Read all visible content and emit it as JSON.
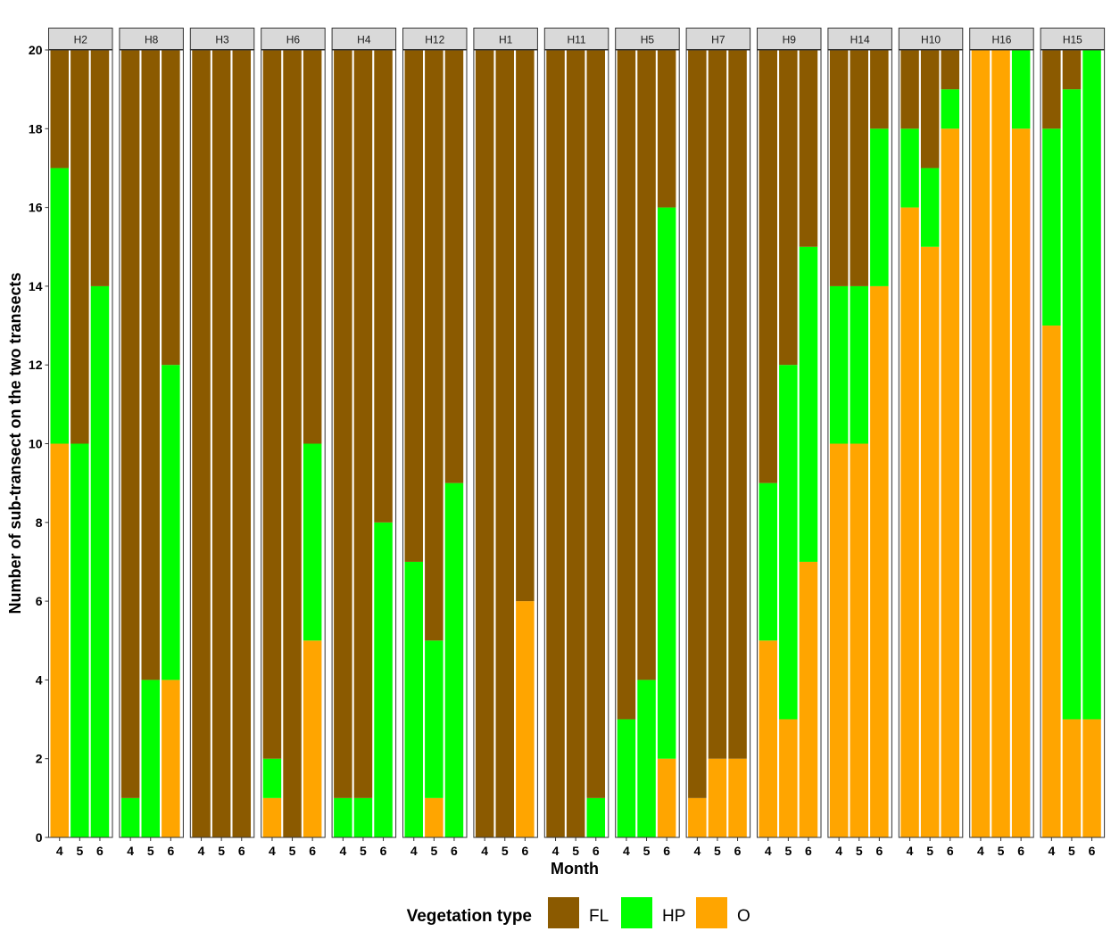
{
  "chart_data": {
    "type": "bar",
    "stacked": true,
    "xlabel": "Month",
    "ylabel": "Number of sub-transect on the two transects",
    "ylim": [
      0,
      20
    ],
    "yticks": [
      0,
      2,
      4,
      6,
      8,
      10,
      12,
      14,
      16,
      18,
      20
    ],
    "categories": [
      "4",
      "5",
      "6"
    ],
    "legend": {
      "title": "Vegetation type",
      "position": "bottom",
      "items": [
        {
          "key": "FL",
          "label": "FL",
          "color": "#8B5A00"
        },
        {
          "key": "HP",
          "label": "HP",
          "color": "#00FF00"
        },
        {
          "key": "O",
          "label": "O",
          "color": "#FFA500"
        }
      ]
    },
    "stack_order_bottom_to_top": [
      "O",
      "HP",
      "FL"
    ],
    "facets": [
      {
        "name": "H2",
        "O": [
          10,
          0,
          0
        ],
        "HP": [
          7,
          10,
          14
        ],
        "FL": [
          3,
          10,
          6
        ]
      },
      {
        "name": "H8",
        "O": [
          0,
          0,
          4
        ],
        "HP": [
          1,
          4,
          8
        ],
        "FL": [
          19,
          16,
          8
        ]
      },
      {
        "name": "H3",
        "O": [
          0,
          0,
          0
        ],
        "HP": [
          0,
          0,
          0
        ],
        "FL": [
          20,
          20,
          20
        ]
      },
      {
        "name": "H6",
        "O": [
          1,
          0,
          5
        ],
        "HP": [
          1,
          0,
          5
        ],
        "FL": [
          18,
          20,
          10
        ]
      },
      {
        "name": "H4",
        "O": [
          0,
          0,
          0
        ],
        "HP": [
          1,
          1,
          8
        ],
        "FL": [
          19,
          19,
          12
        ]
      },
      {
        "name": "H12",
        "O": [
          0,
          1,
          0
        ],
        "HP": [
          7,
          4,
          9
        ],
        "FL": [
          13,
          15,
          11
        ]
      },
      {
        "name": "H1",
        "O": [
          0,
          0,
          6
        ],
        "HP": [
          0,
          0,
          0
        ],
        "FL": [
          20,
          20,
          14
        ]
      },
      {
        "name": "H11",
        "O": [
          0,
          0,
          0
        ],
        "HP": [
          0,
          0,
          1
        ],
        "FL": [
          20,
          20,
          19
        ]
      },
      {
        "name": "H5",
        "O": [
          0,
          0,
          2
        ],
        "HP": [
          3,
          4,
          14
        ],
        "FL": [
          17,
          16,
          4
        ]
      },
      {
        "name": "H7",
        "O": [
          1,
          2,
          2
        ],
        "HP": [
          0,
          0,
          0
        ],
        "FL": [
          19,
          18,
          18
        ]
      },
      {
        "name": "H9",
        "O": [
          5,
          3,
          7
        ],
        "HP": [
          4,
          9,
          8
        ],
        "FL": [
          11,
          8,
          5
        ]
      },
      {
        "name": "H14",
        "O": [
          10,
          10,
          14
        ],
        "HP": [
          4,
          4,
          4
        ],
        "FL": [
          6,
          6,
          2
        ]
      },
      {
        "name": "H10",
        "O": [
          16,
          15,
          18
        ],
        "HP": [
          2,
          2,
          1
        ],
        "FL": [
          2,
          3,
          1
        ]
      },
      {
        "name": "H16",
        "O": [
          20,
          20,
          18
        ],
        "HP": [
          0,
          0,
          2
        ],
        "FL": [
          0,
          0,
          0
        ]
      },
      {
        "name": "H15",
        "O": [
          13,
          3,
          3
        ],
        "HP": [
          5,
          16,
          17
        ],
        "FL": [
          2,
          1,
          0
        ]
      }
    ]
  }
}
